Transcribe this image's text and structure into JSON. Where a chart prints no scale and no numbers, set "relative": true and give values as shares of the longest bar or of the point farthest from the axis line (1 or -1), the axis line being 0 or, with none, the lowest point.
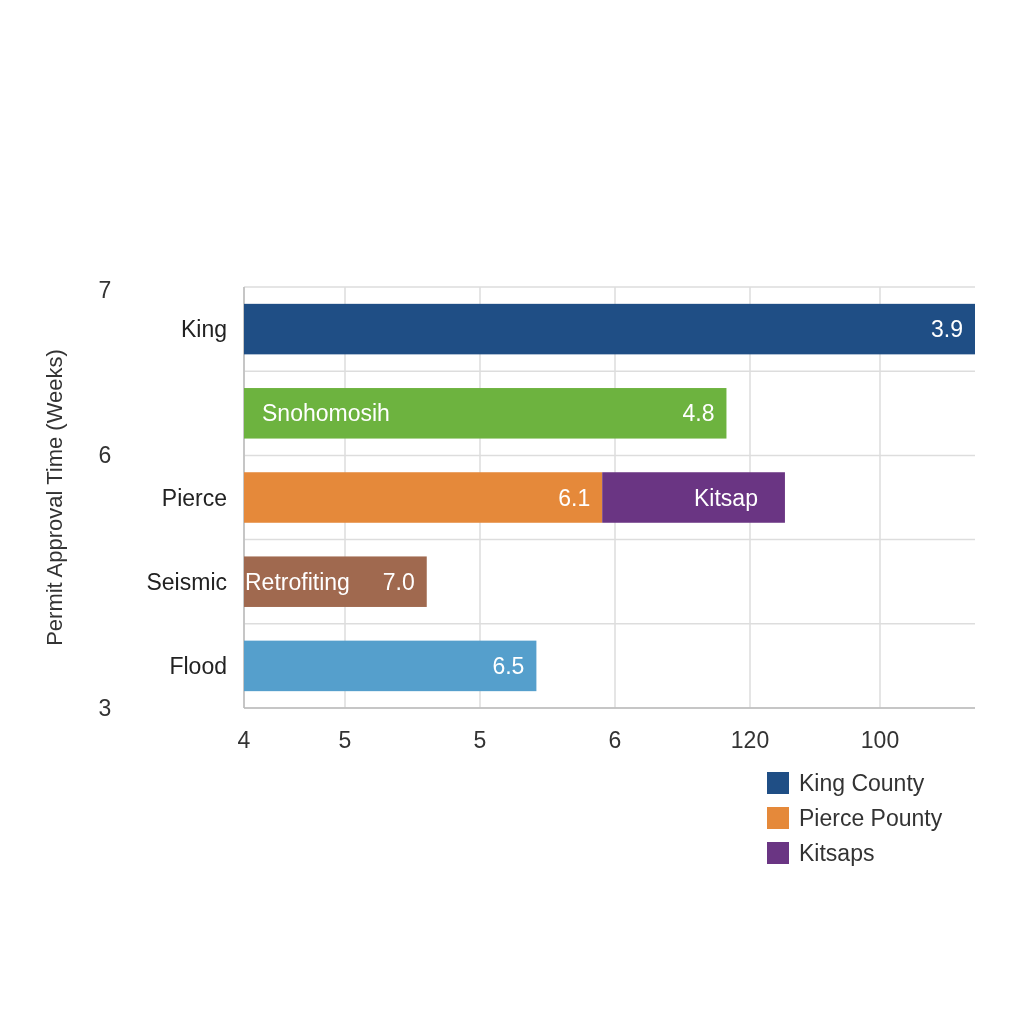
{
  "chart_data": {
    "type": "bar",
    "orientation": "horizontal",
    "stacked": true,
    "relative": true,
    "ylabel": "Permit Approval Time (Weeks)",
    "categories": [
      "King",
      null,
      "Pierce",
      "Seismic",
      "Flood"
    ],
    "series": [
      {
        "name": "King County",
        "color": "#1f4e85",
        "values": [
          1,
          null,
          null,
          null,
          null
        ]
      },
      {
        "name": "Pierce Pounty",
        "color": "#e5893a",
        "colors": [
          null,
          "#6db33f",
          "#e5893a",
          "#a0694f",
          "#559fcc"
        ],
        "values": [
          null,
          0.66,
          0.49,
          0.25,
          0.4
        ]
      },
      {
        "name": "Kitsaps",
        "color": "#6a3583",
        "values": [
          null,
          null,
          0.25,
          null,
          null
        ]
      }
    ],
    "annotations": [
      "7",
      "6",
      "3",
      "4",
      "5",
      "5",
      "6",
      "120",
      "100",
      "Snohomosih",
      "Kitsap",
      "Retrofiting",
      "3.9",
      "4.8",
      "6.1",
      "7.0",
      "6.5"
    ],
    "grid": true,
    "legend": "bottom right"
  }
}
